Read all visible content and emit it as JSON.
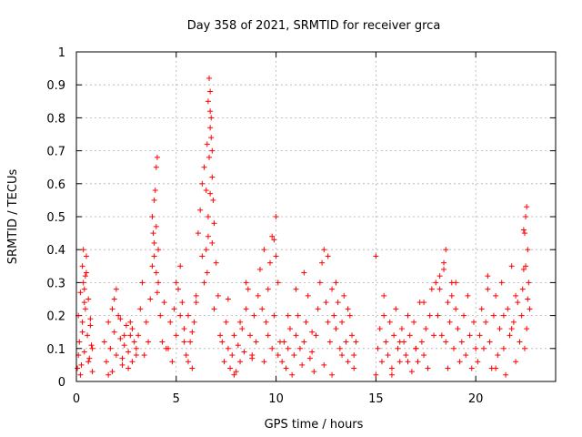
{
  "chart_data": {
    "type": "scatter",
    "title": "Day 358 of 2021, SRMTID for receiver grca",
    "xlabel": "GPS time / hours",
    "ylabel": "SRMTID / TECUs",
    "xlim": [
      0,
      24
    ],
    "ylim": [
      0,
      1
    ],
    "xticks": [
      0,
      5,
      10,
      15,
      20
    ],
    "xtick_labels": [
      "0",
      "5",
      "10",
      "15",
      "20"
    ],
    "yticks": [
      0,
      0.1,
      0.2,
      0.3,
      0.4,
      0.5,
      0.6,
      0.7,
      0.8,
      0.9,
      1
    ],
    "ytick_labels": [
      "0",
      "0.1",
      "0.2",
      "0.3",
      "0.4",
      "0.5",
      "0.6",
      "0.7",
      "0.8",
      "0.9",
      "1"
    ],
    "grid": true,
    "marker": "+",
    "marker_color": "#ff0000",
    "series": [
      {
        "name": "SRMTID",
        "x": [
          0.05,
          0.1,
          0.15,
          0.2,
          0.25,
          0.3,
          0.35,
          0.4,
          0.45,
          0.5,
          0.55,
          0.6,
          0.65,
          0.7,
          0.75,
          0.8,
          0.1,
          0.2,
          0.3,
          0.4,
          0.5,
          0.6,
          0.7,
          0.8,
          0.3,
          0.35,
          0.4,
          0.45,
          1.4,
          1.5,
          1.6,
          1.7,
          1.8,
          1.9,
          2.0,
          2.1,
          2.2,
          2.3,
          2.4,
          2.5,
          2.6,
          2.7,
          2.8,
          2.9,
          3.0,
          1.6,
          1.8,
          2.0,
          2.2,
          2.4,
          2.6,
          2.8,
          3.0,
          1.9,
          2.3,
          2.7,
          3.1,
          3.2,
          3.3,
          3.4,
          3.5,
          3.6,
          3.7,
          3.8,
          3.9,
          4.0,
          4.1,
          4.2,
          4.3,
          4.4,
          4.5,
          3.8,
          3.85,
          3.9,
          3.95,
          4.0,
          4.05,
          4.1,
          3.9,
          4.0,
          4.05,
          4.6,
          4.7,
          4.8,
          4.9,
          5.0,
          5.1,
          5.2,
          5.3,
          5.4,
          5.5,
          5.6,
          5.7,
          5.8,
          5.9,
          6.0,
          5.0,
          5.2,
          5.4,
          5.6,
          5.8,
          6.0,
          6.1,
          6.2,
          6.3,
          6.4,
          6.5,
          6.55,
          6.6,
          6.65,
          6.7,
          6.75,
          6.8,
          6.85,
          6.9,
          7.0,
          7.1,
          7.2,
          6.3,
          6.4,
          6.5,
          6.6,
          6.7,
          6.8,
          6.9,
          6.6,
          6.7,
          6.65,
          6.75,
          6.7,
          6.55,
          6.8,
          7.3,
          7.4,
          7.5,
          7.6,
          7.7,
          7.8,
          7.9,
          8.0,
          8.1,
          8.2,
          8.3,
          8.4,
          8.5,
          8.6,
          8.7,
          8.8,
          8.9,
          9.0,
          7.6,
          7.9,
          8.2,
          8.5,
          8.8,
          9.1,
          9.2,
          9.3,
          9.4,
          9.5,
          9.6,
          9.7,
          9.8,
          9.9,
          10.0,
          10.1,
          10.2,
          9.4,
          9.6,
          9.8,
          10.0,
          9.9,
          10.1,
          10.3,
          10.4,
          10.5,
          10.6,
          10.7,
          10.8,
          10.9,
          11.0,
          11.1,
          11.2,
          11.3,
          11.4,
          11.5,
          11.6,
          11.7,
          11.8,
          11.9,
          10.6,
          11.0,
          11.4,
          11.8,
          12.0,
          12.1,
          12.2,
          12.3,
          12.4,
          12.5,
          12.6,
          12.7,
          12.8,
          12.9,
          13.0,
          13.1,
          13.2,
          13.3,
          13.4,
          13.5,
          13.6,
          13.7,
          13.8,
          13.9,
          14.0,
          12.4,
          12.6,
          12.8,
          13.0,
          13.3,
          13.6,
          13.9,
          15.0,
          15.1,
          15.2,
          15.3,
          15.4,
          15.5,
          15.6,
          15.7,
          15.8,
          15.9,
          16.0,
          16.1,
          16.2,
          16.3,
          16.4,
          16.5,
          16.6,
          16.7,
          16.8,
          16.9,
          17.0,
          17.1,
          17.2,
          17.3,
          17.4,
          17.5,
          17.6,
          17.7,
          17.8,
          17.9,
          18.0,
          15.4,
          15.8,
          16.2,
          16.6,
          17.0,
          17.4,
          15.0,
          18.1,
          18.2,
          18.3,
          18.4,
          18.5,
          18.6,
          18.7,
          18.8,
          18.9,
          19.0,
          19.1,
          19.2,
          19.3,
          19.4,
          19.5,
          19.6,
          19.7,
          19.8,
          19.9,
          20.0,
          18.2,
          18.4,
          18.6,
          18.8,
          19.0,
          18.5,
          20.1,
          20.2,
          20.3,
          20.4,
          20.5,
          20.6,
          20.7,
          20.8,
          20.9,
          21.0,
          21.1,
          21.2,
          21.3,
          21.4,
          21.5,
          21.6,
          21.7,
          21.8,
          21.9,
          22.0,
          22.1,
          22.2,
          20.6,
          21.0,
          21.4,
          21.8,
          22.0,
          22.3,
          22.35,
          22.4,
          22.45,
          22.5,
          22.55,
          22.6,
          22.65,
          22.7,
          22.4,
          22.5,
          22.6,
          22.45,
          22.55
        ],
        "y": [
          0.04,
          0.2,
          0.12,
          0.27,
          0.05,
          0.18,
          0.3,
          0.09,
          0.22,
          0.38,
          0.14,
          0.25,
          0.07,
          0.19,
          0.11,
          0.03,
          0.08,
          0.02,
          0.15,
          0.24,
          0.33,
          0.06,
          0.17,
          0.1,
          0.35,
          0.4,
          0.28,
          0.32,
          0.12,
          0.06,
          0.18,
          0.1,
          0.03,
          0.15,
          0.08,
          0.2,
          0.13,
          0.05,
          0.11,
          0.17,
          0.09,
          0.14,
          0.06,
          0.12,
          0.08,
          0.02,
          0.22,
          0.28,
          0.19,
          0.14,
          0.04,
          0.16,
          0.1,
          0.25,
          0.07,
          0.18,
          0.14,
          0.22,
          0.3,
          0.08,
          0.18,
          0.12,
          0.25,
          0.35,
          0.42,
          0.47,
          0.3,
          0.2,
          0.12,
          0.24,
          0.1,
          0.5,
          0.45,
          0.55,
          0.58,
          0.65,
          0.68,
          0.4,
          0.38,
          0.33,
          0.27,
          0.1,
          0.18,
          0.06,
          0.22,
          0.14,
          0.28,
          0.35,
          0.24,
          0.16,
          0.08,
          0.2,
          0.12,
          0.04,
          0.18,
          0.26,
          0.3,
          0.2,
          0.12,
          0.06,
          0.15,
          0.24,
          0.45,
          0.52,
          0.6,
          0.65,
          0.4,
          0.72,
          0.85,
          0.92,
          0.88,
          0.8,
          0.62,
          0.55,
          0.48,
          0.36,
          0.26,
          0.14,
          0.38,
          0.3,
          0.58,
          0.44,
          0.77,
          0.7,
          0.22,
          0.5,
          0.82,
          0.68,
          0.74,
          0.57,
          0.33,
          0.42,
          0.12,
          0.06,
          0.18,
          0.1,
          0.04,
          0.08,
          0.14,
          0.03,
          0.11,
          0.06,
          0.16,
          0.09,
          0.22,
          0.28,
          0.14,
          0.07,
          0.2,
          0.12,
          0.25,
          0.02,
          0.18,
          0.3,
          0.08,
          0.26,
          0.34,
          0.22,
          0.4,
          0.18,
          0.28,
          0.36,
          0.44,
          0.2,
          0.5,
          0.3,
          0.12,
          0.06,
          0.14,
          0.1,
          0.38,
          0.43,
          0.08,
          0.06,
          0.12,
          0.04,
          0.1,
          0.16,
          0.02,
          0.08,
          0.14,
          0.2,
          0.1,
          0.05,
          0.12,
          0.18,
          0.26,
          0.07,
          0.15,
          0.03,
          0.2,
          0.28,
          0.33,
          0.09,
          0.14,
          0.22,
          0.3,
          0.36,
          0.4,
          0.24,
          0.18,
          0.12,
          0.28,
          0.2,
          0.16,
          0.24,
          0.1,
          0.18,
          0.26,
          0.12,
          0.06,
          0.2,
          0.14,
          0.08,
          0.12,
          0.05,
          0.38,
          0.02,
          0.3,
          0.08,
          0.22,
          0.04,
          0.02,
          0.1,
          0.16,
          0.06,
          0.2,
          0.12,
          0.08,
          0.18,
          0.04,
          0.14,
          0.22,
          0.1,
          0.06,
          0.16,
          0.12,
          0.08,
          0.2,
          0.14,
          0.03,
          0.18,
          0.1,
          0.06,
          0.24,
          0.12,
          0.08,
          0.16,
          0.04,
          0.2,
          0.28,
          0.14,
          0.3,
          0.26,
          0.02,
          0.12,
          0.06,
          0.1,
          0.24,
          0.38,
          0.2,
          0.28,
          0.14,
          0.36,
          0.4,
          0.24,
          0.18,
          0.3,
          0.1,
          0.22,
          0.16,
          0.06,
          0.12,
          0.2,
          0.08,
          0.26,
          0.14,
          0.04,
          0.18,
          0.1,
          0.32,
          0.34,
          0.04,
          0.26,
          0.3,
          0.12,
          0.06,
          0.14,
          0.22,
          0.1,
          0.18,
          0.28,
          0.12,
          0.04,
          0.2,
          0.26,
          0.08,
          0.16,
          0.3,
          0.1,
          0.02,
          0.22,
          0.14,
          0.35,
          0.18,
          0.06,
          0.24,
          0.12,
          0.32,
          0.04,
          0.2,
          0.16,
          0.26,
          0.2,
          0.28,
          0.34,
          0.45,
          0.5,
          0.53,
          0.4,
          0.3,
          0.22,
          0.46,
          0.35,
          0.25,
          0.1,
          0.16
        ]
      }
    ]
  }
}
